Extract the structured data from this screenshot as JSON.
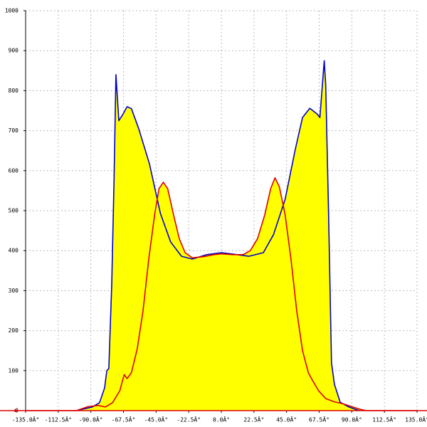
{
  "chart_data": {
    "type": "area",
    "xlim": [
      -135,
      135
    ],
    "ylim": [
      0,
      1000
    ],
    "xticks": [
      {
        "value": -135,
        "label": "-135.0Â°"
      },
      {
        "value": -112.5,
        "label": "-112.5Â°"
      },
      {
        "value": -90,
        "label": "-90.0Â°"
      },
      {
        "value": -67.5,
        "label": "-67.5Â°"
      },
      {
        "value": -45,
        "label": "-45.0Â°"
      },
      {
        "value": -22.5,
        "label": "-22.5Â°"
      },
      {
        "value": 0,
        "label": "0.0Â°"
      },
      {
        "value": 22.5,
        "label": "22.5Â°"
      },
      {
        "value": 45,
        "label": "45.0Â°"
      },
      {
        "value": 67.5,
        "label": "67.5Â°"
      },
      {
        "value": 90,
        "label": "90.0Â°"
      },
      {
        "value": 112.5,
        "label": "112.5Â°"
      },
      {
        "value": 135,
        "label": "135.0Â°"
      }
    ],
    "yticks": [
      0,
      100,
      200,
      300,
      400,
      500,
      600,
      700,
      800,
      900,
      1000
    ],
    "grid": true,
    "fill": "#ffff00",
    "series": [
      {
        "color": "#0000cc",
        "x": [
          -100,
          -89,
          -84,
          -80.5,
          -79,
          -77.6,
          -75.6,
          -74,
          -72.7,
          -70.7,
          -68,
          -65,
          -62,
          -57,
          -49.6,
          -42,
          -35,
          -27.5,
          -20,
          -10,
          0,
          9,
          19,
          29,
          36,
          44,
          51,
          56,
          61,
          66,
          68,
          71,
          72,
          74,
          76,
          78,
          82,
          88,
          95
        ],
        "values": [
          0,
          9,
          20,
          57,
          100,
          105,
          315,
          580,
          840,
          725,
          740,
          760,
          755,
          705,
          617,
          493,
          422,
          386,
          379,
          390,
          395,
          391,
          386,
          395,
          440,
          528,
          653,
          733,
          756,
          742,
          733,
          875,
          813,
          493,
          120,
          66,
          21,
          9,
          0
        ]
      },
      {
        "color": "#dd0000",
        "x": [
          -135,
          -100,
          -92,
          -85,
          -80,
          -75,
          -70,
          -67,
          -65,
          -62,
          -58,
          -54,
          -50,
          -46,
          -43,
          -40,
          -37,
          -33,
          -29,
          -25,
          -20,
          -12,
          -5,
          0,
          8,
          15,
          20,
          25,
          30,
          34,
          37,
          40,
          44,
          48,
          52,
          56,
          60,
          63,
          67,
          72,
          78,
          84,
          90,
          96,
          100,
          135
        ],
        "values": [
          0,
          0,
          10,
          13,
          9,
          20,
          50,
          90,
          80,
          95,
          155,
          250,
          380,
          490,
          555,
          571,
          555,
          490,
          430,
          395,
          382,
          385,
          390,
          392,
          390,
          390,
          400,
          430,
          490,
          555,
          582,
          560,
          490,
          380,
          250,
          150,
          95,
          75,
          50,
          30,
          22,
          17,
          10,
          3,
          0,
          0
        ]
      }
    ]
  }
}
